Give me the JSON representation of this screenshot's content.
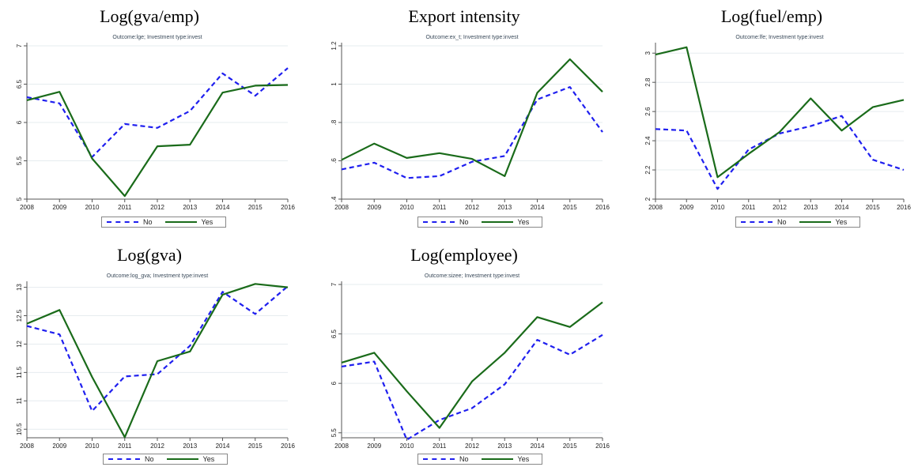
{
  "legend": {
    "no": "No",
    "yes": "Yes"
  },
  "colors": {
    "no": "#1f1fef",
    "yes": "#1a6b1a",
    "grid": "#e6ecef",
    "axis": "#555555"
  },
  "chart_data": [
    {
      "type": "line",
      "title": "Log(gva/emp)",
      "subtitle": "Outcome:lge; Investment type:invest",
      "x": [
        2008,
        2009,
        2010,
        2011,
        2012,
        2013,
        2014,
        2015,
        2016
      ],
      "ylim": [
        5,
        7
      ],
      "yticks": [
        5,
        5.5,
        6,
        6.5,
        7
      ],
      "series": [
        {
          "name": "No",
          "values": [
            6.33,
            6.25,
            5.55,
            5.98,
            5.93,
            6.15,
            6.64,
            6.35,
            6.71
          ]
        },
        {
          "name": "Yes",
          "values": [
            6.29,
            6.4,
            5.53,
            5.04,
            5.69,
            5.71,
            6.39,
            6.48,
            6.49
          ]
        }
      ]
    },
    {
      "type": "line",
      "title": "Export intensity",
      "subtitle": "Outcome:ex_t; Investment type:invest",
      "x": [
        2008,
        2009,
        2010,
        2011,
        2012,
        2013,
        2014,
        2015,
        2016
      ],
      "ylim": [
        0.4,
        1.2
      ],
      "yticks": [
        0.4,
        0.6,
        0.8,
        1,
        1.2
      ],
      "ytick_labels": [
        ".4",
        ".6",
        ".8",
        "1",
        "1.2"
      ],
      "series": [
        {
          "name": "No",
          "values": [
            0.555,
            0.59,
            0.51,
            0.52,
            0.595,
            0.625,
            0.92,
            0.985,
            0.75
          ]
        },
        {
          "name": "Yes",
          "values": [
            0.605,
            0.69,
            0.615,
            0.64,
            0.61,
            0.52,
            0.955,
            1.13,
            0.96
          ]
        }
      ]
    },
    {
      "type": "line",
      "title": "Log(fuel/emp)",
      "subtitle": "Outcome:lfe; Investment type:invest",
      "x": [
        2008,
        2009,
        2010,
        2011,
        2012,
        2013,
        2014,
        2015,
        2016
      ],
      "ylim": [
        2,
        3.05
      ],
      "yticks": [
        2,
        2.2,
        2.4,
        2.6,
        2.8,
        3
      ],
      "ytick_labels": [
        "2",
        "2.2",
        "2.4",
        "2.6",
        "2.8",
        "3"
      ],
      "series": [
        {
          "name": "No",
          "values": [
            2.48,
            2.47,
            2.07,
            2.34,
            2.45,
            2.5,
            2.57,
            2.27,
            2.2
          ]
        },
        {
          "name": "Yes",
          "values": [
            2.99,
            3.04,
            2.15,
            2.31,
            2.46,
            2.69,
            2.47,
            2.63,
            2.68
          ]
        }
      ]
    },
    {
      "type": "line",
      "title": "Log(gva)",
      "subtitle": "Outcome:log_gva; Investment type:invest",
      "x": [
        2008,
        2009,
        2010,
        2011,
        2012,
        2013,
        2014,
        2015,
        2016
      ],
      "ylim": [
        10.35,
        13.05
      ],
      "yticks": [
        10.5,
        11,
        11.5,
        12,
        12.5,
        13
      ],
      "ytick_labels": [
        "10.5",
        "11",
        "11.5",
        "12",
        "12.5",
        "13"
      ],
      "series": [
        {
          "name": "No",
          "values": [
            12.32,
            12.17,
            10.82,
            11.43,
            11.47,
            11.97,
            12.92,
            12.53,
            13.02
          ]
        },
        {
          "name": "Yes",
          "values": [
            12.36,
            12.6,
            11.42,
            10.36,
            11.7,
            11.87,
            12.87,
            13.06,
            13.0
          ]
        }
      ]
    },
    {
      "type": "line",
      "title": "Log(employee)",
      "subtitle": "Outcome:sizee; Investment type:invest",
      "x": [
        2008,
        2009,
        2010,
        2011,
        2012,
        2013,
        2014,
        2015,
        2016
      ],
      "ylim": [
        5.45,
        7
      ],
      "yticks": [
        5.5,
        6,
        6.5,
        7
      ],
      "ytick_labels": [
        "5.5",
        "6",
        "6.5",
        "7"
      ],
      "series": [
        {
          "name": "No",
          "values": [
            6.17,
            6.22,
            5.43,
            5.63,
            5.75,
            5.99,
            6.44,
            6.29,
            6.49
          ]
        },
        {
          "name": "Yes",
          "values": [
            6.21,
            6.31,
            5.92,
            5.55,
            6.02,
            6.31,
            6.67,
            6.57,
            6.82
          ]
        }
      ]
    }
  ]
}
